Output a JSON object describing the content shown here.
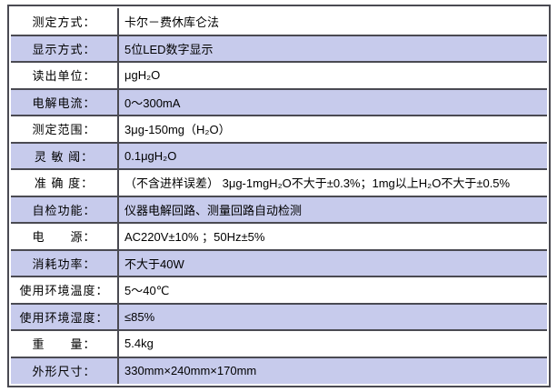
{
  "table": {
    "description": "product-specification-table",
    "colors": {
      "shaded_row": "#c7cbec",
      "border": "#4a4a52",
      "text": "#000000",
      "background": "#ffffff"
    },
    "columns": [
      "label",
      "value"
    ],
    "rows": [
      {
        "label": "测定方式：",
        "value": "卡尔－费休库仑法",
        "shaded": false
      },
      {
        "label": "显示方式：",
        "value": "5位LED数字显示",
        "shaded": true
      },
      {
        "label": "读出单位：",
        "value": "μgH₂O",
        "shaded": false
      },
      {
        "label": "电解电流：",
        "value": "0～300mA",
        "shaded": true
      },
      {
        "label": "测定范围：",
        "value": "3μg-150mg（H₂O）",
        "shaded": false
      },
      {
        "label": "灵 敏 阈：",
        "value": "0.1μgH₂O",
        "shaded": true
      },
      {
        "label": "准 确 度：",
        "value": "（不含进样误差） 3μg-1mgH₂O不大于±0.3%；1mg以上H₂O不大于±0.5%",
        "shaded": false
      },
      {
        "label": "自检功能：",
        "value": "仪器电解回路、测量回路自动检测",
        "shaded": true
      },
      {
        "label": "电　　源：",
        "value": "AC220V±10% ；50Hz±5%",
        "shaded": false
      },
      {
        "label": "消耗功率：",
        "value": "不大于40W",
        "shaded": true
      },
      {
        "label": "使用环境温度：",
        "value": "5～40℃",
        "shaded": false
      },
      {
        "label": "使用环境湿度：",
        "value": "≤85%",
        "shaded": true
      },
      {
        "label": "重　　量：",
        "value": "5.4kg",
        "shaded": false
      },
      {
        "label": "外形尺寸：",
        "value": "330mm×240mm×170mm",
        "shaded": true
      }
    ]
  }
}
